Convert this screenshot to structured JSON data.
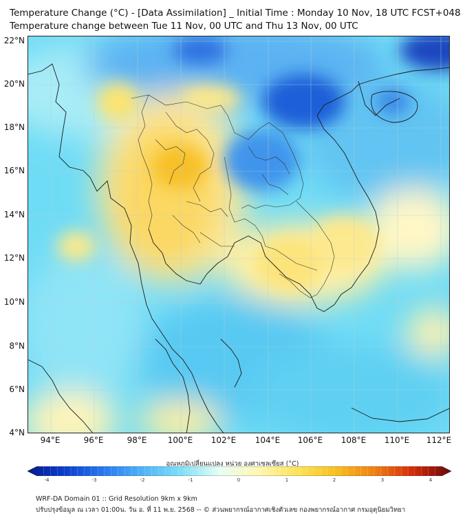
{
  "title": {
    "line1": "Temperature Change (°C) - [Data Assimilation] _ Initial Time : Monday 10 Nov, 18 UTC FCST+048",
    "line2": "Temperature change between Tue 11 Nov, 00 UTC and Thu 13 Nov, 00 UTC"
  },
  "map": {
    "lat_labels": [
      "22°N",
      "20°N",
      "18°N",
      "16°N",
      "14°N",
      "12°N",
      "10°N",
      "8°N",
      "6°N",
      "4°N"
    ],
    "lon_labels": [
      "94°E",
      "96°E",
      "98°E",
      "100°E",
      "102°E",
      "104°E",
      "106°E",
      "108°E",
      "110°E",
      "112°E"
    ]
  },
  "colorbar": {
    "title": "อุณหภูมิเปลี่ยนแปลง หน่วย องศาเซลเซียส (°C)",
    "tick_labels": [
      "-4",
      "-3",
      "-2",
      "-1",
      "0",
      "1",
      "2",
      "3",
      "4"
    ],
    "colors": [
      "#061a8c",
      "#0b3fd0",
      "#2a7af0",
      "#4fb4f8",
      "#7fe0f8",
      "#e8fff4",
      "#fff7b0",
      "#fde35a",
      "#f9c01e",
      "#f08010",
      "#d42a0a",
      "#6b0808"
    ]
  },
  "footer": {
    "line1": "WRF-DA Domain 01 :: Grid Resolution 9km x 9km",
    "line2": "ปรับปรุงข้อมูล ณ เวลา 01:00น. วัน อ. ที่ 11 พ.ย. 2568 -- © ส่วนพยากรณ์อากาศเชิงตัวเลข กองพยากรณ์อากาศ กรมอุตุนิยมวิทยา"
  }
}
